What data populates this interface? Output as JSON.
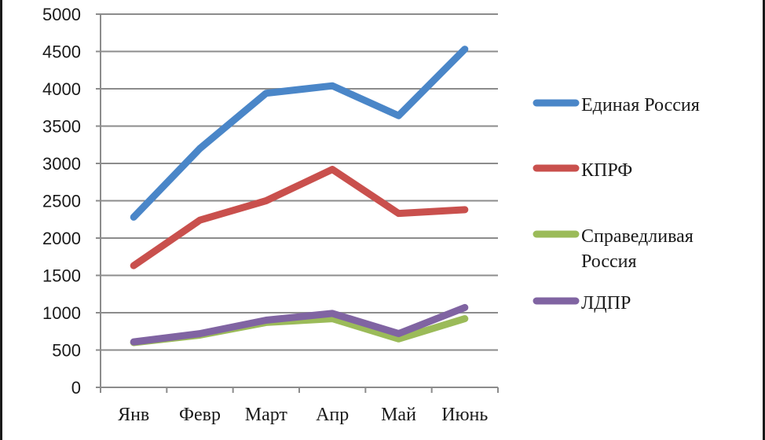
{
  "chart_data": {
    "type": "line",
    "title": "",
    "xlabel": "",
    "ylabel": "",
    "ylim": [
      0,
      5000
    ],
    "yticks": [
      0,
      500,
      1000,
      1500,
      2000,
      2500,
      3000,
      3500,
      4000,
      4500,
      5000
    ],
    "grid": "horizontal",
    "legend_position": "right",
    "categories": [
      "Янв",
      "Февр",
      "Март",
      "Апр",
      "Май",
      "Июнь"
    ],
    "series": [
      {
        "name": "Единая Россия",
        "label_lines": [
          "Единая Россия"
        ],
        "color": "#4a86c8",
        "values": [
          2280,
          3200,
          3940,
          4040,
          3640,
          4530
        ]
      },
      {
        "name": "КПРФ",
        "label_lines": [
          "КПРФ"
        ],
        "color": "#c9504d",
        "values": [
          1630,
          2240,
          2500,
          2920,
          2330,
          2380
        ]
      },
      {
        "name": "Справедливая Россия",
        "label_lines": [
          "Справедливая",
          "Россия"
        ],
        "color": "#9bbb59",
        "values": [
          600,
          700,
          870,
          920,
          650,
          920
        ]
      },
      {
        "name": "ЛДПР",
        "label_lines": [
          "ЛДПР"
        ],
        "color": "#8064a2",
        "values": [
          610,
          720,
          900,
          990,
          720,
          1070
        ]
      }
    ]
  }
}
